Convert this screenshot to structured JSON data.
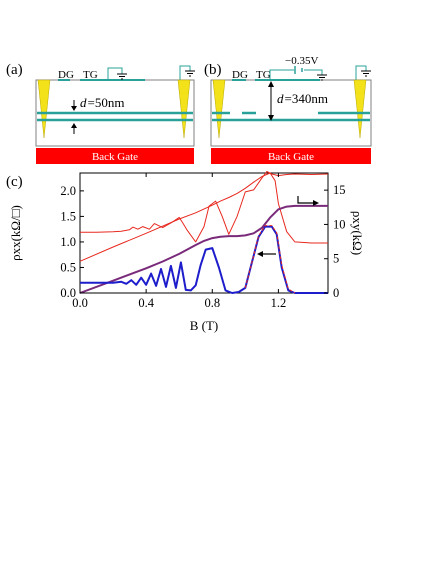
{
  "schematics": [
    {
      "label": "(a)",
      "dg_label": "DG",
      "tg_label": "TG",
      "voltage": "",
      "thickness_d": "d",
      "thickness_value": "=50nm",
      "back_gate": "Back Gate"
    },
    {
      "label": "(b)",
      "dg_label": "DG",
      "tg_label": "TG",
      "voltage": "−0.35V",
      "thickness_d": "d",
      "thickness_value": "=340nm",
      "back_gate": "Back Gate"
    }
  ],
  "colors": {
    "device_outline": "#808080",
    "quantum_well": "#2aa198",
    "contact_fill": "#f3e21a",
    "back_gate": "#ff0000",
    "gate_lead": "#2aa198",
    "series_red": "#e8281e",
    "series_blue": "#1d1dcc",
    "series_purple": "#7a2a7a"
  },
  "chart_data": {
    "type": "line",
    "panel_label": "(c)",
    "xlabel": "B (T)",
    "ylabel_left": "ρxx(kΩ/□)",
    "ylabel_right": "ρxy(kΩ)",
    "xlim": [
      0.0,
      1.5
    ],
    "ylim_left": [
      0.0,
      2.35
    ],
    "ylim_right": [
      0,
      17.5
    ],
    "x_ticks": [
      0.0,
      0.4,
      0.8,
      1.2
    ],
    "x_tick_labels": [
      "0.0",
      "0.4",
      "0.8",
      "1.2"
    ],
    "y_left_ticks": [
      0.0,
      0.5,
      1.0,
      1.5,
      2.0
    ],
    "y_left_tick_labels": [
      "0.0",
      "0.5",
      "1.0",
      "1.5",
      "2.0"
    ],
    "y_right_ticks": [
      0,
      5,
      10,
      15
    ],
    "y_right_tick_labels": [
      "0",
      "5",
      "10",
      "15"
    ],
    "series": [
      {
        "color": "red",
        "axis": "left",
        "style": "solid",
        "x": [
          0.0,
          0.1,
          0.2,
          0.25,
          0.3,
          0.32,
          0.35,
          0.38,
          0.42,
          0.45,
          0.5,
          0.55,
          0.6,
          0.62,
          0.65,
          0.7,
          0.75,
          0.78,
          0.82,
          0.86,
          0.9,
          0.95,
          1.0,
          1.05,
          1.1,
          1.13,
          1.16,
          1.2,
          1.25,
          1.3,
          1.4,
          1.5
        ],
        "y": [
          1.19,
          1.19,
          1.2,
          1.21,
          1.24,
          1.29,
          1.25,
          1.3,
          1.25,
          1.36,
          1.28,
          1.37,
          1.48,
          1.38,
          1.22,
          1.0,
          1.3,
          1.7,
          1.8,
          1.5,
          1.15,
          1.5,
          1.98,
          2.02,
          2.25,
          2.38,
          2.33,
          2.3,
          2.32,
          2.33,
          2.32,
          2.33
        ]
      },
      {
        "color": "red",
        "axis": "left",
        "style": "solid",
        "x": [
          0.0,
          0.2,
          0.4,
          0.6,
          0.7,
          0.8,
          0.85,
          0.9,
          0.95,
          1.0,
          1.05,
          1.1,
          1.15,
          1.18,
          1.2,
          1.25,
          1.3,
          1.4,
          1.5
        ],
        "y": [
          0.62,
          0.9,
          1.17,
          1.45,
          1.57,
          1.72,
          1.8,
          1.87,
          1.95,
          2.05,
          2.17,
          2.28,
          2.35,
          2.2,
          1.75,
          1.2,
          1.0,
          0.98,
          0.98
        ]
      },
      {
        "color": "purple",
        "axis": "right",
        "style": "solid",
        "x": [
          0.0,
          0.2,
          0.4,
          0.5,
          0.6,
          0.7,
          0.75,
          0.8,
          0.85,
          0.9,
          0.95,
          1.0,
          1.05,
          1.1,
          1.15,
          1.2,
          1.25,
          1.3,
          1.4,
          1.5
        ],
        "y": [
          0.0,
          1.8,
          3.6,
          4.6,
          5.7,
          7.0,
          7.6,
          8.0,
          8.2,
          8.3,
          8.3,
          8.4,
          8.7,
          9.5,
          11.0,
          12.2,
          12.6,
          12.7,
          12.7,
          12.7
        ]
      },
      {
        "color": "blue",
        "axis": "left",
        "style": "solid",
        "x": [
          0.0,
          0.2,
          0.25,
          0.28,
          0.31,
          0.34,
          0.37,
          0.4,
          0.43,
          0.46,
          0.49,
          0.52,
          0.55,
          0.58,
          0.61,
          0.64,
          0.67,
          0.7,
          0.73,
          0.76,
          0.8,
          0.84,
          0.88,
          0.92,
          0.96,
          1.0,
          1.04,
          1.08,
          1.12,
          1.16,
          1.19,
          1.22,
          1.26,
          1.3,
          1.4,
          1.5
        ],
        "y": [
          0.2,
          0.2,
          0.22,
          0.18,
          0.25,
          0.16,
          0.3,
          0.16,
          0.38,
          0.14,
          0.47,
          0.12,
          0.53,
          0.1,
          0.6,
          0.06,
          0.05,
          0.15,
          0.55,
          0.85,
          0.88,
          0.5,
          0.05,
          0.0,
          0.02,
          0.1,
          0.6,
          1.1,
          1.3,
          1.3,
          1.15,
          0.5,
          0.05,
          0.0,
          0.0,
          0.0
        ]
      },
      {
        "color": "red",
        "axis": "left",
        "style": "dashed",
        "x": [
          1.0,
          1.04,
          1.08,
          1.12,
          1.16,
          1.19,
          1.22,
          1.26,
          1.3
        ],
        "y": [
          0.1,
          0.6,
          1.12,
          1.32,
          1.32,
          1.18,
          0.55,
          0.08,
          0.0
        ]
      }
    ],
    "arrow_annotations": [
      "purple curve → right axis",
      "blue curve ← left axis"
    ]
  }
}
